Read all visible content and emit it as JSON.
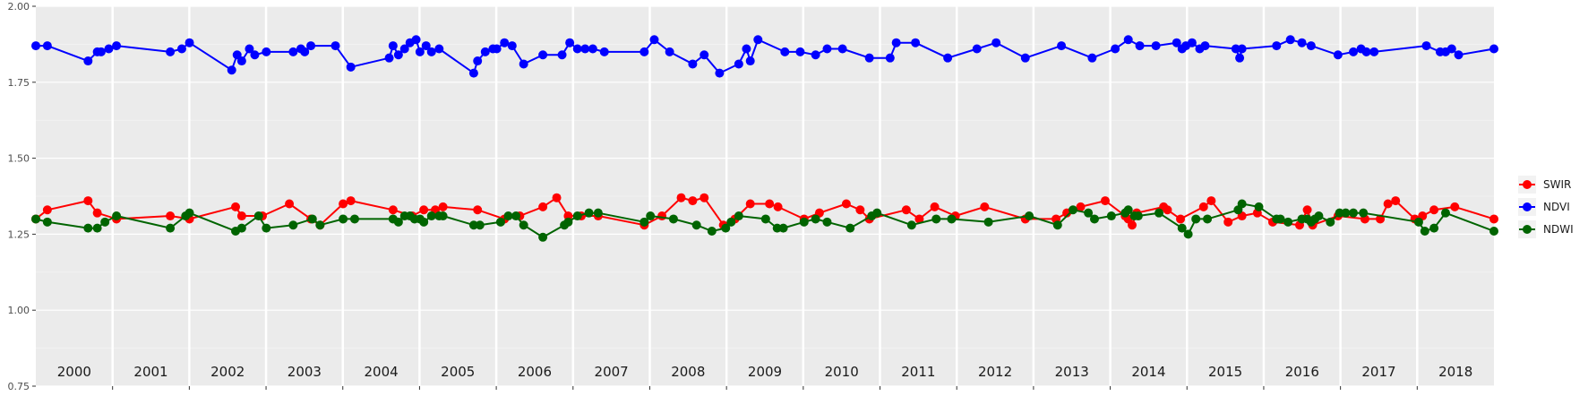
{
  "chart_data": {
    "type": "line",
    "title": "",
    "xlabel": "",
    "ylabel": "",
    "ylim": [
      0.75,
      2.0
    ],
    "y_ticks": [
      "0.75",
      "1.00",
      "1.25",
      "1.50",
      "1.75",
      "2.00"
    ],
    "grid": true,
    "legend_position": "right",
    "years": [
      "2000",
      "2001",
      "2002",
      "2003",
      "2004",
      "2005",
      "2006",
      "2007",
      "2008",
      "2009",
      "2010",
      "2011",
      "2012",
      "2013",
      "2014",
      "2015",
      "2016",
      "2017",
      "2018"
    ],
    "x_range": [
      2000.0,
      2018.98
    ],
    "series": [
      {
        "name": "SWIR",
        "color": "#ff0000",
        "x": [
          2000.0,
          2000.15,
          2000.68,
          2000.8,
          2001.05,
          2001.75,
          2002.0,
          2002.6,
          2002.68,
          2002.95,
          2003.3,
          2003.58,
          2003.7,
          2004.0,
          2004.1,
          2004.65,
          2004.9,
          2005.05,
          2005.2,
          2005.3,
          2005.75,
          2006.1,
          2006.3,
          2006.6,
          2006.78,
          2006.93,
          2007.1,
          2007.32,
          2007.92,
          2008.15,
          2008.4,
          2008.55,
          2008.7,
          2008.95,
          2009.1,
          2009.3,
          2009.55,
          2009.66,
          2010.0,
          2010.2,
          2010.55,
          2010.73,
          2010.85,
          2011.33,
          2011.5,
          2011.7,
          2011.97,
          2012.35,
          2012.88,
          2013.28,
          2013.42,
          2013.6,
          2013.92,
          2014.18,
          2014.22,
          2014.27,
          2014.33,
          2014.68,
          2014.73,
          2014.9,
          2015.2,
          2015.3,
          2015.52,
          2015.7,
          2015.9,
          2016.1,
          2016.45,
          2016.55,
          2016.62,
          2016.95,
          2017.3,
          2017.5,
          2017.6,
          2017.7,
          2017.95,
          2018.05,
          2018.2,
          2018.47,
          2018.98
        ],
        "values": [
          1.3,
          1.33,
          1.36,
          1.32,
          1.3,
          1.31,
          1.3,
          1.34,
          1.31,
          1.31,
          1.35,
          1.3,
          1.28,
          1.35,
          1.36,
          1.33,
          1.31,
          1.33,
          1.33,
          1.34,
          1.33,
          1.3,
          1.31,
          1.34,
          1.37,
          1.31,
          1.31,
          1.31,
          1.28,
          1.31,
          1.37,
          1.36,
          1.37,
          1.28,
          1.3,
          1.35,
          1.35,
          1.34,
          1.3,
          1.32,
          1.35,
          1.33,
          1.3,
          1.33,
          1.3,
          1.34,
          1.31,
          1.34,
          1.3,
          1.3,
          1.32,
          1.34,
          1.36,
          1.31,
          1.3,
          1.28,
          1.32,
          1.34,
          1.33,
          1.3,
          1.34,
          1.36,
          1.29,
          1.31,
          1.32,
          1.29,
          1.28,
          1.33,
          1.28,
          1.31,
          1.3,
          1.3,
          1.35,
          1.36,
          1.3,
          1.31,
          1.33,
          1.34,
          1.3
        ]
      },
      {
        "name": "NDVI",
        "color": "#0000ff",
        "x": [
          2000.0,
          2000.15,
          2000.68,
          2000.8,
          2000.85,
          2000.95,
          2001.05,
          2001.75,
          2001.9,
          2002.0,
          2002.55,
          2002.62,
          2002.68,
          2002.78,
          2002.85,
          2003.0,
          2003.35,
          2003.45,
          2003.5,
          2003.58,
          2003.9,
          2004.1,
          2004.6,
          2004.65,
          2004.72,
          2004.8,
          2004.87,
          2004.95,
          2005.0,
          2005.08,
          2005.15,
          2005.25,
          2005.7,
          2005.75,
          2005.85,
          2005.95,
          2006.0,
          2006.1,
          2006.2,
          2006.35,
          2006.6,
          2006.85,
          2006.95,
          2007.05,
          2007.15,
          2007.25,
          2007.4,
          2007.92,
          2008.05,
          2008.25,
          2008.55,
          2008.7,
          2008.9,
          2009.15,
          2009.25,
          2009.3,
          2009.4,
          2009.75,
          2009.95,
          2010.15,
          2010.3,
          2010.5,
          2010.85,
          2011.12,
          2011.2,
          2011.45,
          2011.87,
          2012.25,
          2012.5,
          2012.88,
          2013.35,
          2013.75,
          2014.05,
          2014.22,
          2014.37,
          2014.58,
          2014.85,
          2014.92,
          2014.97,
          2015.05,
          2015.15,
          2015.22,
          2015.62,
          2015.67,
          2015.7,
          2016.15,
          2016.33,
          2016.48,
          2016.6,
          2016.95,
          2017.15,
          2017.25,
          2017.32,
          2017.42,
          2018.1,
          2018.28,
          2018.35,
          2018.43,
          2018.52,
          2018.98
        ],
        "values": [
          1.87,
          1.87,
          1.82,
          1.85,
          1.85,
          1.86,
          1.87,
          1.85,
          1.86,
          1.88,
          1.79,
          1.84,
          1.82,
          1.86,
          1.84,
          1.85,
          1.85,
          1.86,
          1.85,
          1.87,
          1.87,
          1.8,
          1.83,
          1.87,
          1.84,
          1.86,
          1.88,
          1.89,
          1.85,
          1.87,
          1.85,
          1.86,
          1.78,
          1.82,
          1.85,
          1.86,
          1.86,
          1.88,
          1.87,
          1.81,
          1.84,
          1.84,
          1.88,
          1.86,
          1.86,
          1.86,
          1.85,
          1.85,
          1.89,
          1.85,
          1.81,
          1.84,
          1.78,
          1.81,
          1.86,
          1.82,
          1.89,
          1.85,
          1.85,
          1.84,
          1.86,
          1.86,
          1.83,
          1.83,
          1.88,
          1.88,
          1.83,
          1.86,
          1.88,
          1.83,
          1.87,
          1.83,
          1.86,
          1.89,
          1.87,
          1.87,
          1.88,
          1.86,
          1.87,
          1.88,
          1.86,
          1.87,
          1.86,
          1.83,
          1.86,
          1.87,
          1.89,
          1.88,
          1.87,
          1.84,
          1.85,
          1.86,
          1.85,
          1.85,
          1.87,
          1.85,
          1.85,
          1.86,
          1.84,
          1.86
        ]
      },
      {
        "name": "NDWI",
        "color": "#006400",
        "x": [
          2000.0,
          2000.15,
          2000.68,
          2000.8,
          2000.9,
          2001.05,
          2001.75,
          2001.95,
          2002.0,
          2002.6,
          2002.68,
          2002.9,
          2003.0,
          2003.35,
          2003.6,
          2003.7,
          2004.0,
          2004.15,
          2004.65,
          2004.72,
          2004.8,
          2004.87,
          2004.93,
          2005.0,
          2005.05,
          2005.15,
          2005.25,
          2005.3,
          2005.7,
          2005.78,
          2006.05,
          2006.15,
          2006.25,
          2006.35,
          2006.6,
          2006.88,
          2006.93,
          2007.05,
          2007.2,
          2007.32,
          2007.92,
          2008.0,
          2008.3,
          2008.6,
          2008.8,
          2008.98,
          2009.05,
          2009.15,
          2009.5,
          2009.65,
          2009.73,
          2010.0,
          2010.15,
          2010.3,
          2010.6,
          2010.88,
          2010.95,
          2011.4,
          2011.72,
          2011.92,
          2012.4,
          2012.93,
          2013.3,
          2013.5,
          2013.7,
          2013.78,
          2014.0,
          2014.18,
          2014.22,
          2014.3,
          2014.35,
          2014.62,
          2014.92,
          2015.0,
          2015.1,
          2015.25,
          2015.65,
          2015.7,
          2015.92,
          2016.15,
          2016.2,
          2016.3,
          2016.48,
          2016.55,
          2016.6,
          2016.65,
          2016.7,
          2016.85,
          2016.97,
          2017.05,
          2017.15,
          2017.28,
          2018.0,
          2018.08,
          2018.2,
          2018.35,
          2018.98
        ],
        "values": [
          1.3,
          1.29,
          1.27,
          1.27,
          1.29,
          1.31,
          1.27,
          1.31,
          1.32,
          1.26,
          1.27,
          1.31,
          1.27,
          1.28,
          1.3,
          1.28,
          1.3,
          1.3,
          1.3,
          1.29,
          1.31,
          1.31,
          1.3,
          1.3,
          1.29,
          1.31,
          1.31,
          1.31,
          1.28,
          1.28,
          1.29,
          1.31,
          1.31,
          1.28,
          1.24,
          1.28,
          1.29,
          1.31,
          1.32,
          1.32,
          1.29,
          1.31,
          1.3,
          1.28,
          1.26,
          1.27,
          1.29,
          1.31,
          1.3,
          1.27,
          1.27,
          1.29,
          1.3,
          1.29,
          1.27,
          1.31,
          1.32,
          1.28,
          1.3,
          1.3,
          1.29,
          1.31,
          1.28,
          1.33,
          1.32,
          1.3,
          1.31,
          1.32,
          1.33,
          1.31,
          1.31,
          1.32,
          1.27,
          1.25,
          1.3,
          1.3,
          1.33,
          1.35,
          1.34,
          1.3,
          1.3,
          1.29,
          1.3,
          1.3,
          1.29,
          1.3,
          1.31,
          1.29,
          1.32,
          1.32,
          1.32,
          1.32,
          1.29,
          1.26,
          1.27,
          1.32,
          1.26
        ]
      }
    ]
  }
}
